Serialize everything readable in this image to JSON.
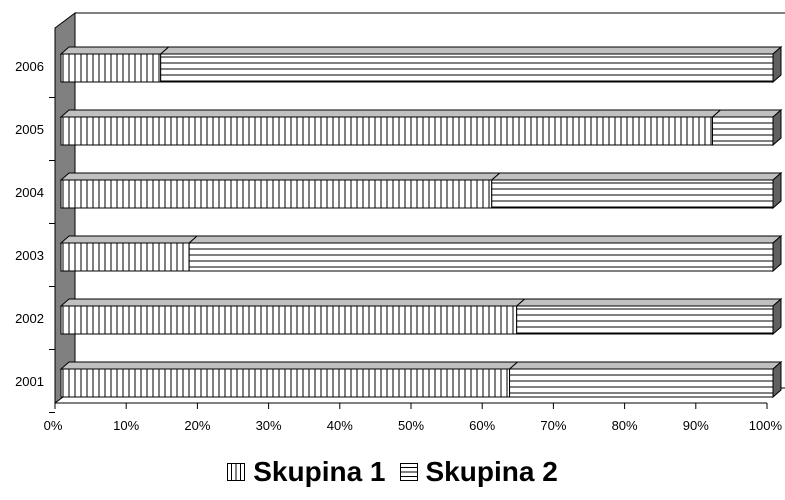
{
  "chart_data": {
    "type": "bar",
    "orientation": "horizontal",
    "stacked": "percent",
    "three_d": true,
    "categories": [
      "2001",
      "2002",
      "2003",
      "2004",
      "2005",
      "2006"
    ],
    "series": [
      {
        "name": "Skupina 1",
        "values": [
          63,
          64,
          18,
          60.5,
          91.5,
          14
        ],
        "pattern": "vertical-lines"
      },
      {
        "name": "Skupina 2",
        "values": [
          37,
          36,
          82,
          39.5,
          8.5,
          86
        ],
        "pattern": "horizontal-lines"
      }
    ],
    "x_ticks": [
      "0%",
      "10%",
      "20%",
      "30%",
      "40%",
      "50%",
      "60%",
      "70%",
      "80%",
      "90%",
      "100%"
    ],
    "xlim": [
      0,
      100
    ],
    "title": "",
    "xlabel": "",
    "ylabel": "",
    "grid": false,
    "legend_position": "bottom",
    "colors": {
      "wall": "#808080",
      "bar_fill": "#ffffff",
      "bar_stroke": "#000000",
      "top_face": "#c0c0c0",
      "side_face": "#606060"
    }
  }
}
